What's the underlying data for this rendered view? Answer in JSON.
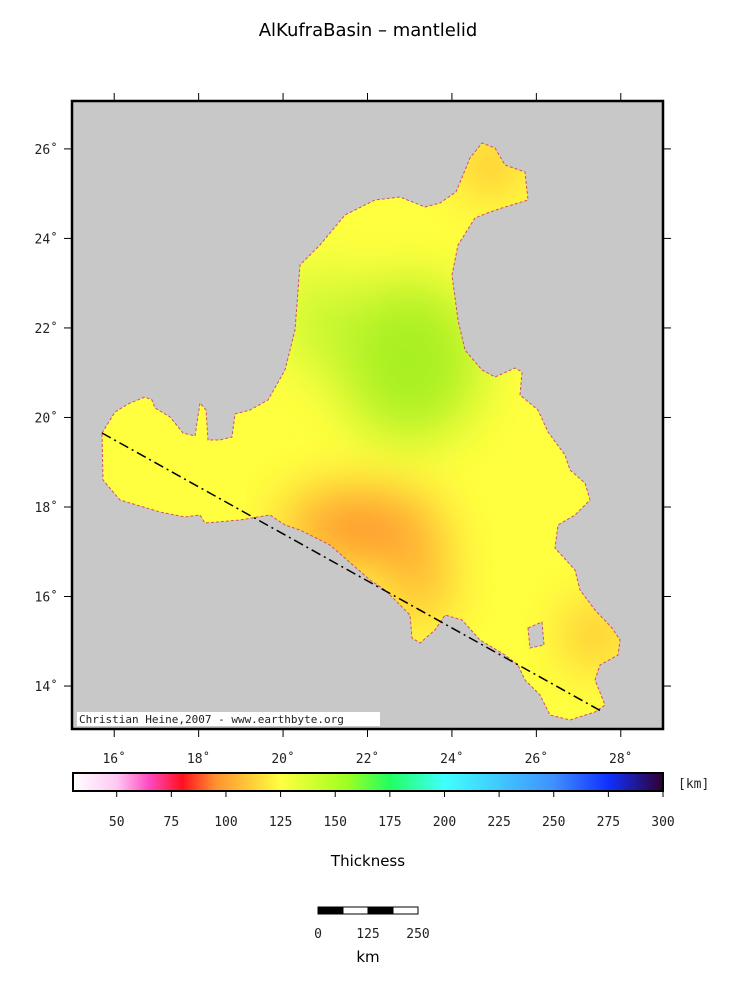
{
  "map": {
    "title": "AlKufraBasin – mantlelid",
    "credit": "Christian Heine,2007 - www.earthbyte.org",
    "xlim": [
      15,
      29
    ],
    "ylim": [
      13.04,
      27.07
    ],
    "xticks": [
      {
        "value": 16,
        "label": "16˚"
      },
      {
        "value": 18,
        "label": "18˚"
      },
      {
        "value": 20,
        "label": "20˚"
      },
      {
        "value": 22,
        "label": "22˚"
      },
      {
        "value": 24,
        "label": "24˚"
      },
      {
        "value": 26,
        "label": "26˚"
      },
      {
        "value": 28,
        "label": "28˚"
      }
    ],
    "yticks": [
      {
        "value": 14,
        "label": "14˚"
      },
      {
        "value": 16,
        "label": "16˚"
      },
      {
        "value": 18,
        "label": "18˚"
      },
      {
        "value": 20,
        "label": "20˚"
      },
      {
        "value": 22,
        "label": "22˚"
      },
      {
        "value": 24,
        "label": "24˚"
      },
      {
        "value": 26,
        "label": "26˚"
      }
    ],
    "colorbar": {
      "label": "Thickness",
      "unit": "[km]",
      "range": [
        30,
        300
      ],
      "ticks": [
        50,
        75,
        100,
        125,
        150,
        175,
        200,
        225,
        250,
        275,
        300
      ],
      "stops": [
        [
          30,
          "#ffffff"
        ],
        [
          50,
          "#ffc8f4"
        ],
        [
          65,
          "#ff48c0"
        ],
        [
          80,
          "#ff1020"
        ],
        [
          95,
          "#ff9030"
        ],
        [
          125,
          "#ffff40"
        ],
        [
          155,
          "#a0ff20"
        ],
        [
          175,
          "#20ff60"
        ],
        [
          200,
          "#40ffff"
        ],
        [
          225,
          "#40c8ff"
        ],
        [
          250,
          "#4090ff"
        ],
        [
          275,
          "#1030ff"
        ],
        [
          300,
          "#300030"
        ]
      ]
    },
    "scalebar": {
      "ticks": [
        "0",
        "125",
        "250"
      ],
      "unit": "km"
    }
  }
}
